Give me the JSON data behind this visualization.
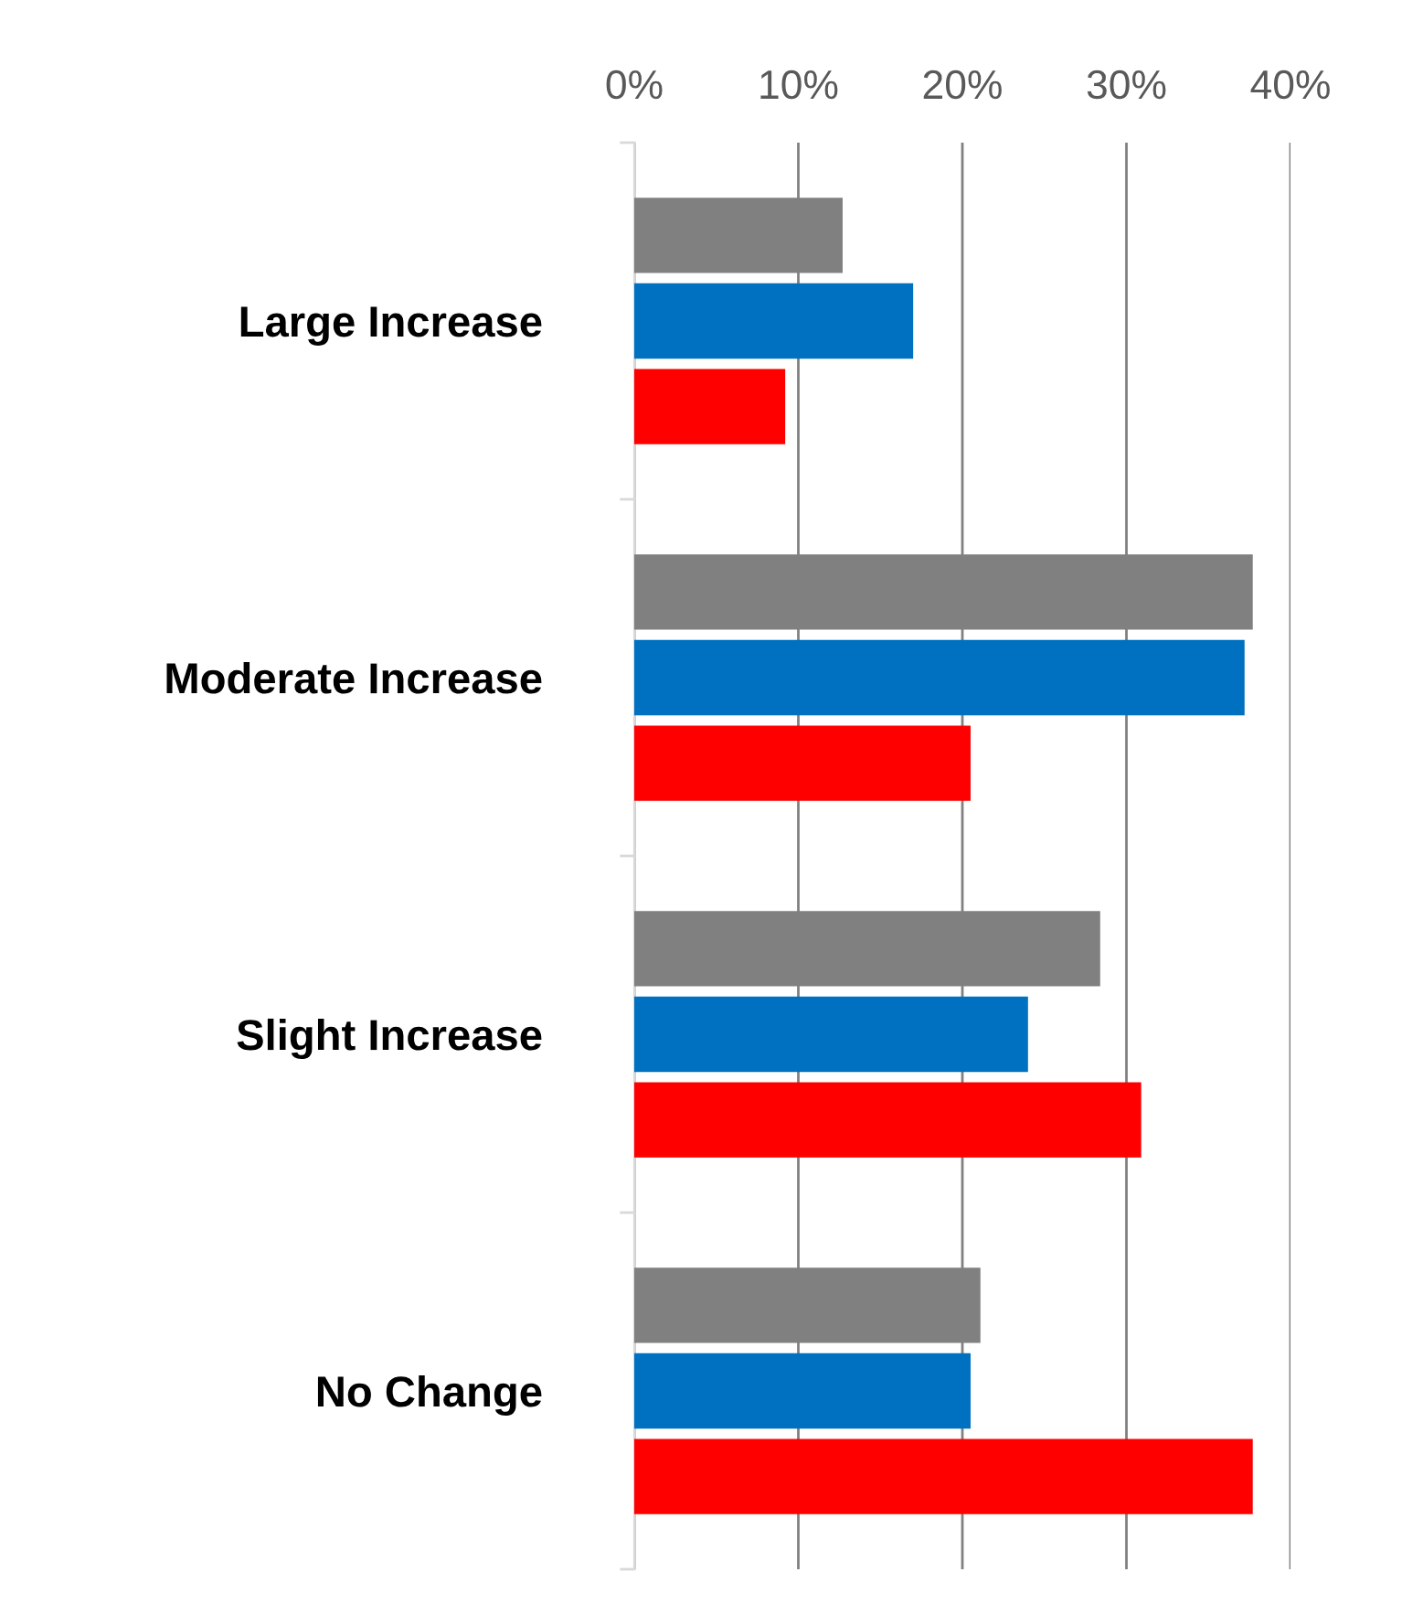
{
  "chart_data": {
    "type": "bar",
    "orientation": "horizontal",
    "categories": [
      "Large Increase",
      "Moderate Increase",
      "Slight Increase",
      "No Change"
    ],
    "series": [
      {
        "color": "#808080",
        "values": [
          12.7,
          37.7,
          28.4,
          21.1
        ]
      },
      {
        "color": "#0070c0",
        "values": [
          17.0,
          37.2,
          24.0,
          20.5
        ]
      },
      {
        "color": "#ff0000",
        "values": [
          9.2,
          20.5,
          30.9,
          37.7
        ]
      }
    ],
    "xlim": [
      0,
      40
    ],
    "xticks": [
      {
        "value": 0,
        "label": "0%"
      },
      {
        "value": 10,
        "label": "10%"
      },
      {
        "value": 20,
        "label": "20%"
      },
      {
        "value": 30,
        "label": "30%"
      },
      {
        "value": 40,
        "label": "40%"
      }
    ],
    "grid": "x",
    "legend": false
  }
}
